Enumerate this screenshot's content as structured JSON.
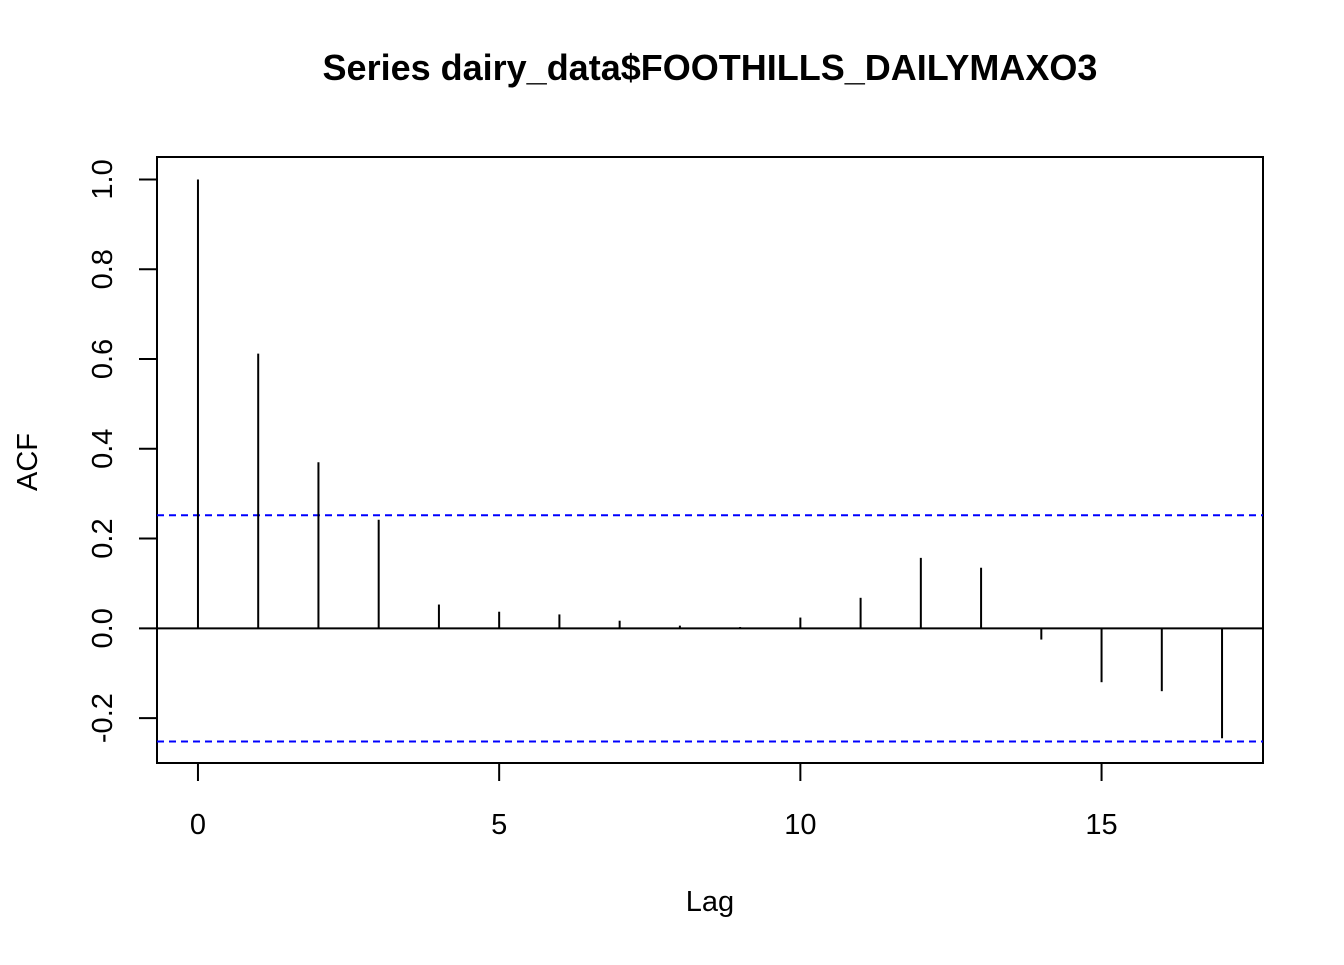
{
  "chart_data": {
    "type": "bar",
    "title": "Series  dairy_data$FOOTHILLS_DAILYMAXO3",
    "xlabel": "Lag",
    "ylabel": "ACF",
    "xlim": [
      -0.68,
      17.68
    ],
    "ylim": [
      -0.3,
      1.05
    ],
    "x_ticks": [
      0,
      5,
      10,
      15
    ],
    "y_ticks": [
      -0.2,
      0.0,
      0.2,
      0.4,
      0.6,
      0.8,
      1.0
    ],
    "y_tick_labels": [
      "-0.2",
      "0.0",
      "0.2",
      "0.4",
      "0.6",
      "0.8",
      "1.0"
    ],
    "lags": [
      0,
      1,
      2,
      3,
      4,
      5,
      6,
      7,
      8,
      9,
      10,
      11,
      12,
      13,
      14,
      15,
      16,
      17
    ],
    "acf": [
      1.0,
      0.612,
      0.37,
      0.242,
      0.053,
      0.037,
      0.031,
      0.017,
      0.006,
      0.003,
      0.024,
      0.068,
      0.157,
      0.135,
      -0.025,
      -0.12,
      -0.14,
      -0.245
    ],
    "confidence_bound": 0.252,
    "zero_line": true,
    "grid": false,
    "colors": {
      "bars": "#000000",
      "confidence_lines": "#0000ff",
      "frame": "#000000"
    }
  }
}
